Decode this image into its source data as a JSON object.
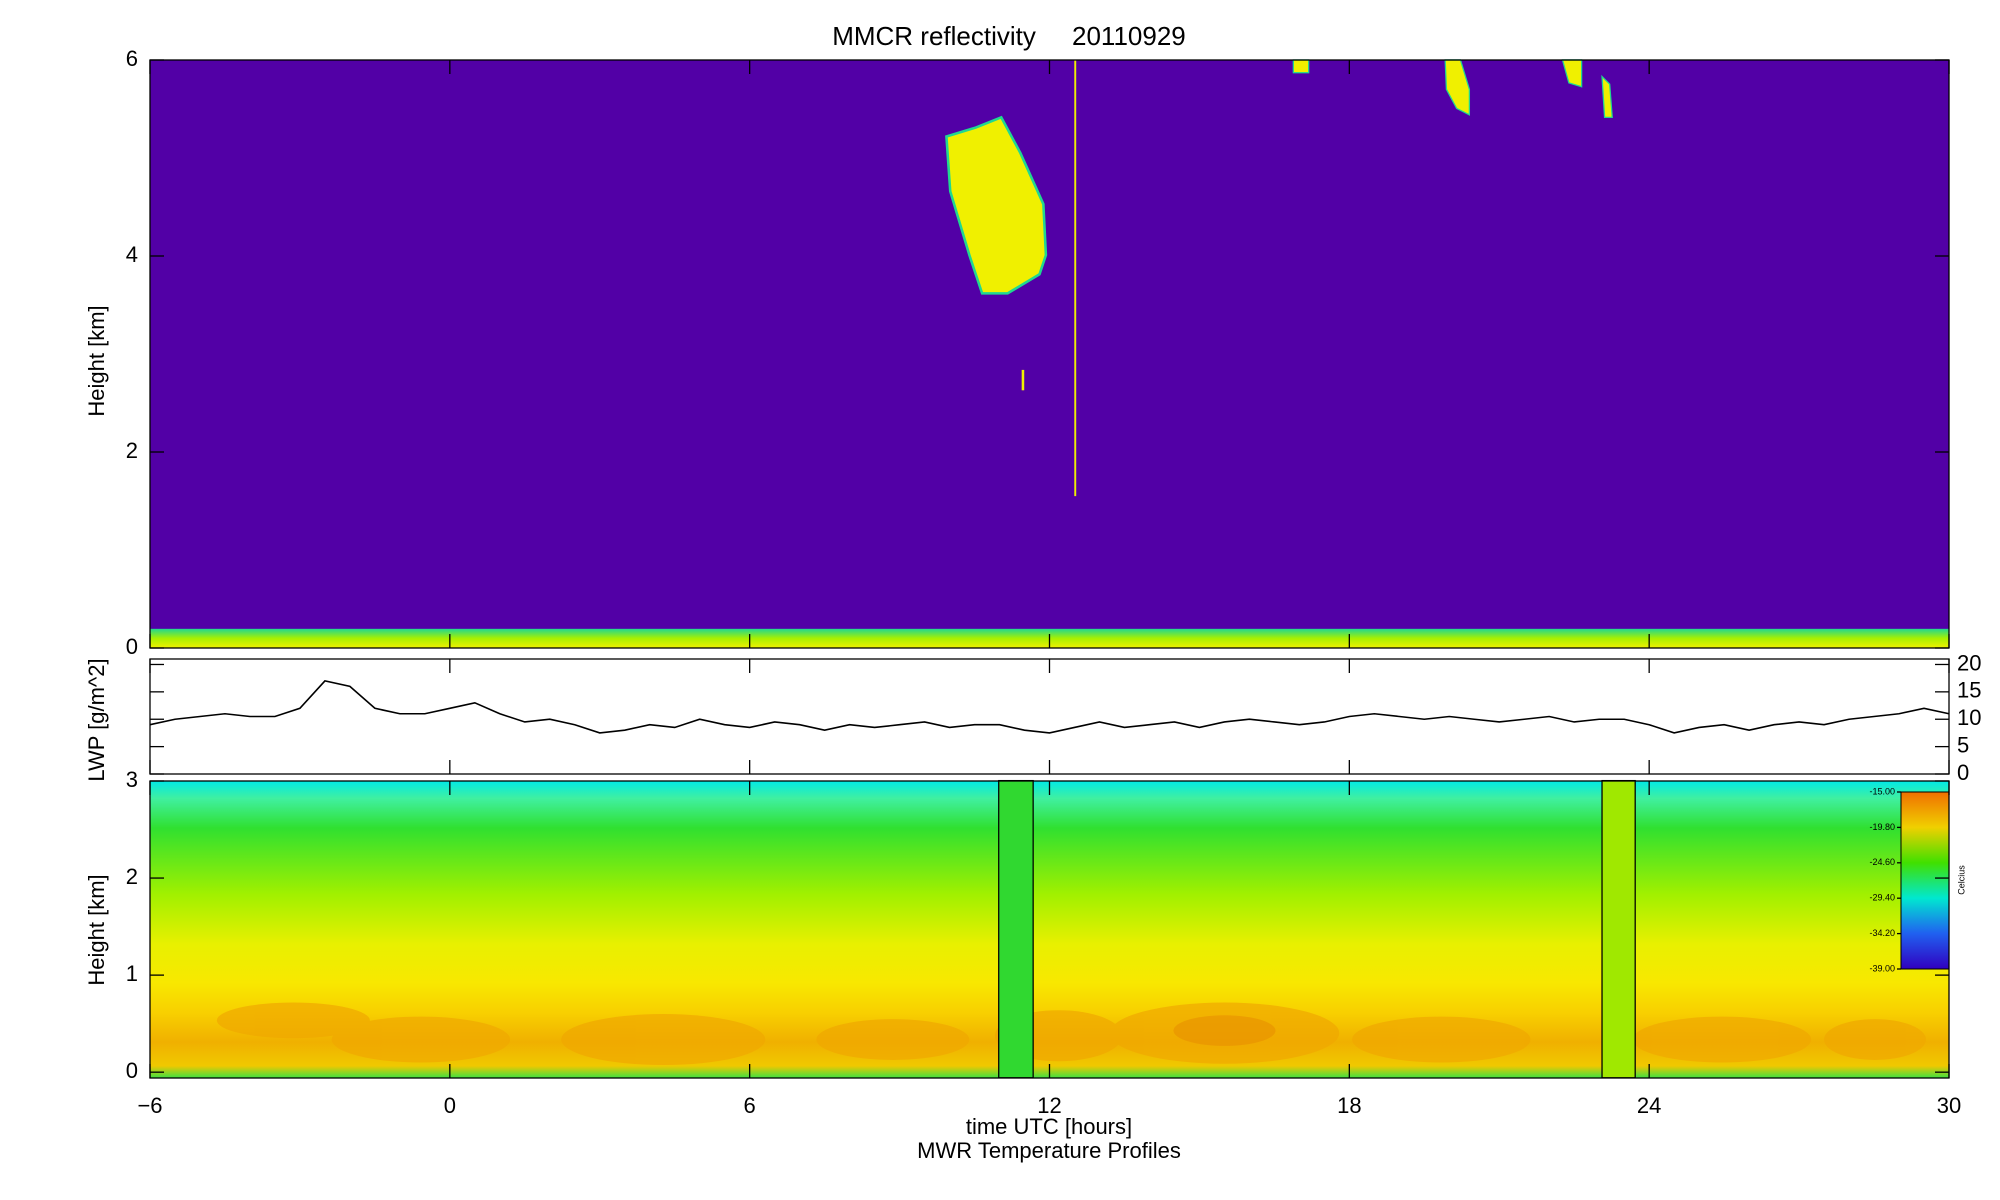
{
  "chart_data": [
    {
      "type": "heatmap",
      "title": "MMCR reflectivity     20110929",
      "ylabel": "Height [km]",
      "xlim": [
        -6,
        30
      ],
      "ylim": [
        0,
        6
      ],
      "yticks": [
        0,
        2,
        4,
        6
      ]
    },
    {
      "type": "line",
      "ylabel": "LWP [g/m^2]",
      "color": "#000000",
      "xlim": [
        -6,
        30
      ],
      "ylim": [
        0,
        21
      ],
      "yticks": [
        0,
        5,
        10,
        15,
        20
      ],
      "x": [
        -6,
        -5.5,
        -5,
        -4.5,
        -4,
        -3.5,
        -3,
        -2.5,
        -2,
        -1.5,
        -1,
        -0.5,
        0,
        0.5,
        1,
        1.5,
        2,
        2.5,
        3,
        3.5,
        4,
        4.5,
        5,
        5.5,
        6,
        6.5,
        7,
        7.5,
        8,
        8.5,
        9,
        9.5,
        10,
        10.5,
        11,
        11.5,
        12,
        12.5,
        13,
        13.5,
        14,
        14.5,
        15,
        15.5,
        16,
        16.5,
        17,
        17.5,
        18,
        18.5,
        19,
        19.5,
        20,
        20.5,
        21,
        21.5,
        22,
        22.5,
        23,
        23.5,
        24,
        24.5,
        25,
        25.5,
        26,
        26.5,
        27,
        27.5,
        28,
        28.5,
        29,
        29.5,
        30
      ],
      "values": [
        9,
        10,
        10.5,
        11,
        10.5,
        10.5,
        12,
        17,
        16,
        12,
        11,
        11,
        12,
        13,
        11,
        9.5,
        10,
        9,
        7.5,
        8,
        9,
        8.5,
        10,
        9,
        8.5,
        9.5,
        9,
        8,
        9,
        8.5,
        9,
        9.5,
        8.5,
        9,
        9,
        8,
        7.5,
        8.5,
        9.5,
        8.5,
        9,
        9.5,
        8.5,
        9.5,
        10,
        9.5,
        9,
        9.5,
        10.5,
        11,
        10.5,
        10,
        10.5,
        10,
        9.5,
        10,
        10.5,
        9.5,
        10,
        10,
        9,
        7.5,
        8.5,
        9,
        8,
        9,
        9.5,
        9,
        10,
        10.5,
        11,
        12,
        11
      ]
    },
    {
      "type": "contour",
      "ylabel": "Height [km]",
      "xlabel": "time UTC [hours]",
      "subtitle": "MWR Temperature Profiles",
      "xlim": [
        -6,
        30
      ],
      "ylim": [
        -0.06,
        3
      ],
      "yticks": [
        0,
        1,
        2,
        3
      ],
      "xticks": [
        {
          "value": -6,
          "label": "−6"
        },
        0,
        6,
        12,
        18,
        24,
        30
      ],
      "colorbar": {
        "label": "Celcius",
        "lim": [
          -39,
          -15
        ],
        "ticks": [
          {
            "value": -15,
            "label": "-15.00"
          },
          {
            "value": -19.8,
            "label": "-19.80"
          },
          {
            "value": -24.6,
            "label": "-24.60"
          },
          {
            "value": -29.4,
            "label": "-29.40"
          },
          {
            "value": -34.2,
            "label": "-34.20"
          },
          {
            "value": -39,
            "label": "-39.00"
          }
        ]
      }
    }
  ]
}
